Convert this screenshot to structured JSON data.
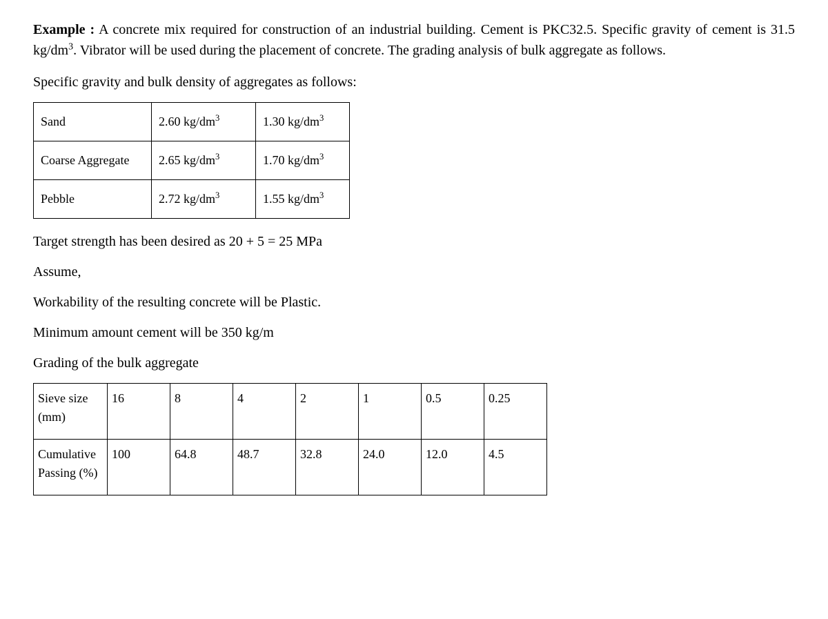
{
  "intro": {
    "heading": "Example :",
    "line1a": " A concrete mix required for construction of an industrial building. Cement is PKC32.5.",
    "line2a": "Specific gravity of cement is 31.5 kg/dm",
    "line2_exp": "3",
    "line2b": ". Vibrator will be used during the placement of concrete. The grading analysis of bulk aggregate as follows.",
    "line3": "Specific gravity and bulk density of aggregates as follows:"
  },
  "density_table": {
    "rows": [
      {
        "material": "Sand",
        "sg_val": "2.60 kg/dm",
        "sg_exp": "3",
        "bd_val": "1.30 kg/dm",
        "bd_exp": "3"
      },
      {
        "material": "Coarse Aggregate",
        "sg_val": "2.65 kg/dm",
        "sg_exp": "3",
        "bd_val": "1.70 kg/dm",
        "bd_exp": "3"
      },
      {
        "material": "Pebble",
        "sg_val": "2.72 kg/dm",
        "sg_exp": "3",
        "bd_val": "1.55 kg/dm",
        "bd_exp": "3"
      }
    ]
  },
  "statements": {
    "target_strength": "Target strength has been desired as 20 + 5 = 25 MPa",
    "assume": "Assume,",
    "workability": "Workability of the resulting concrete will be Plastic.",
    "min_cement": "Minimum amount cement will be 350 kg/m",
    "grading_heading": "Grading of the bulk aggregate"
  },
  "grading_table": {
    "row1_label": "Sieve size (mm)",
    "row1": [
      "16",
      "8",
      "4",
      "2",
      "1",
      "0.5",
      "0.25"
    ],
    "row2_label": "Cumulative Passing (%)",
    "row2": [
      "100",
      "64.8",
      "48.7",
      "32.8",
      "24.0",
      "12.0",
      "4.5"
    ]
  }
}
